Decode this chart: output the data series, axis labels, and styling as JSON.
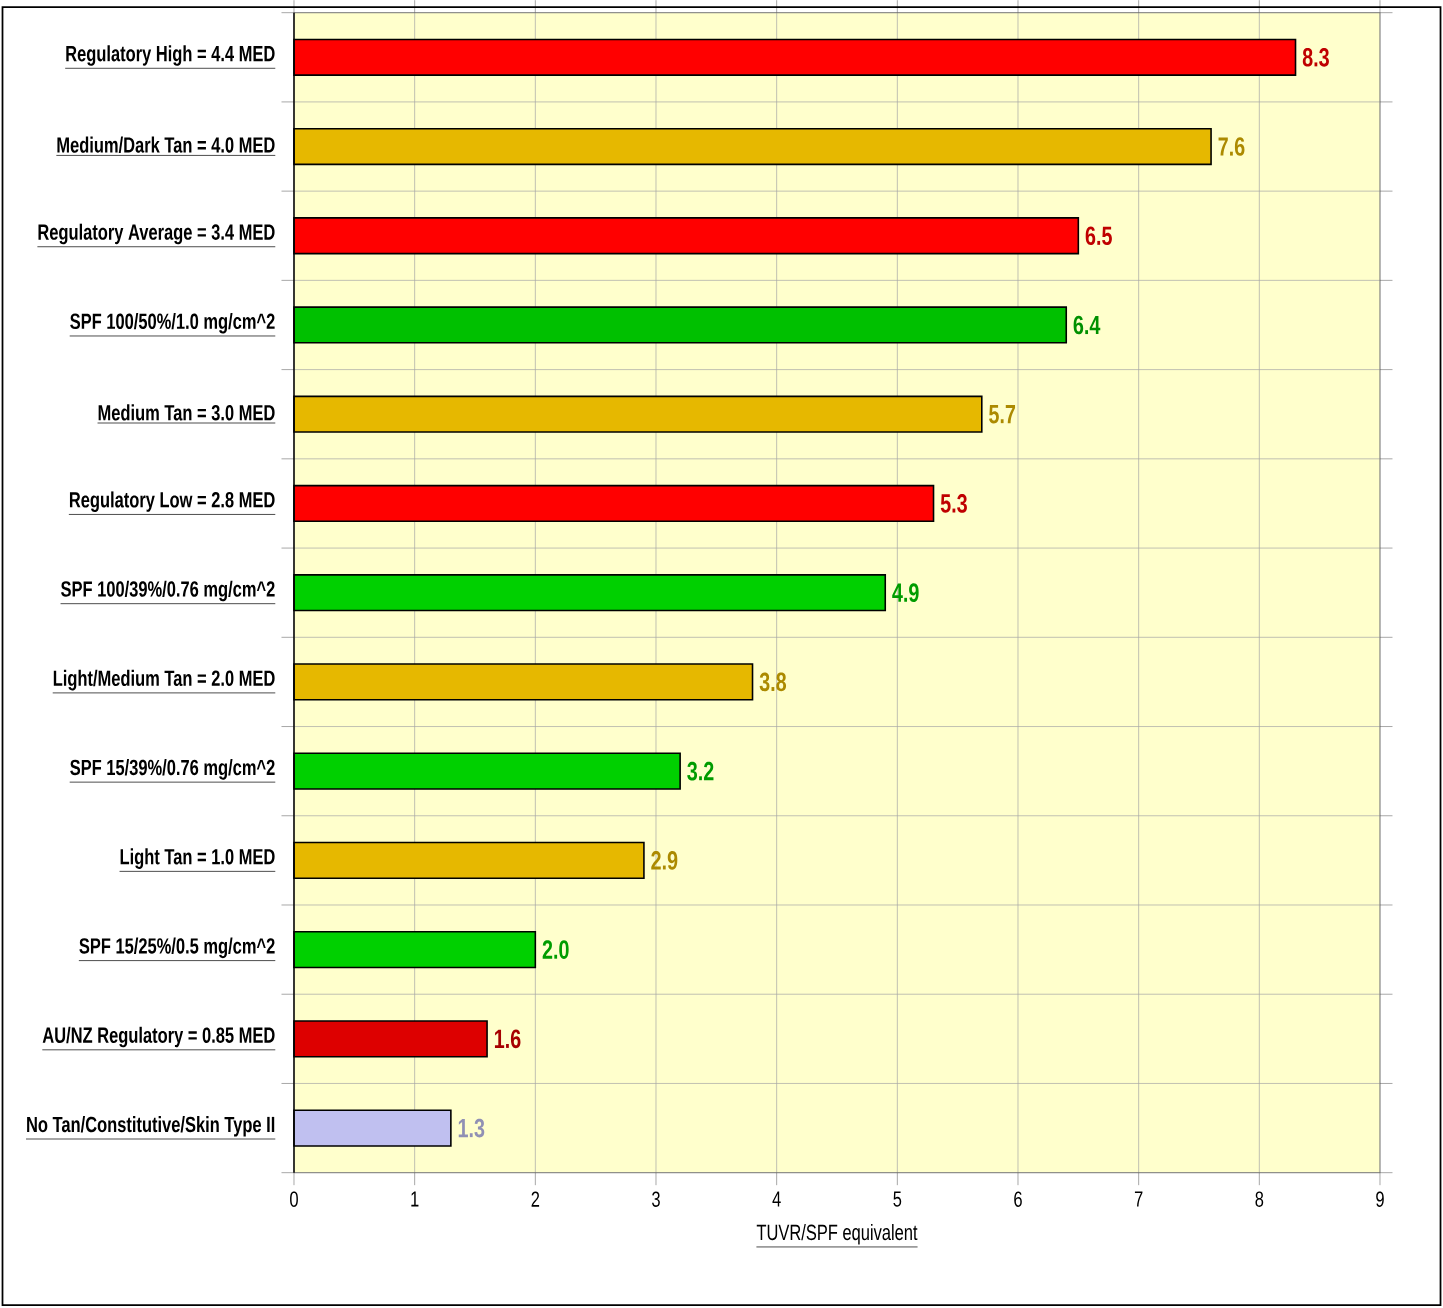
{
  "chart_data": {
    "type": "bar",
    "orientation": "horizontal",
    "categories": [
      "Regulatory High = 4.4 MED",
      "Medium/Dark Tan  = 4.0 MED",
      "Regulatory Average = 3.4 MED",
      "SPF 100/50%/1.0 mg/cm^2",
      "Medium Tan = 3.0 MED",
      "Regulatory Low  = 2.8 MED",
      "SPF 100/39%/0.76 mg/cm^2",
      "Light/Medium Tan = 2.0 MED",
      "SPF 15/39%/0.76 mg/cm^2",
      "Light Tan = 1.0 MED",
      "SPF 15/25%/0.5 mg/cm^2",
      "AU/NZ Regulatory = 0.85 MED",
      "No Tan/Constitutive/Skin Type II"
    ],
    "values": [
      8.3,
      7.6,
      6.5,
      6.4,
      5.7,
      5.3,
      4.9,
      3.8,
      3.2,
      2.9,
      2.0,
      1.6,
      1.3
    ],
    "value_labels": [
      "8.3",
      "7.6",
      "6.5",
      "6.4",
      "5.7",
      "5.3",
      "4.9",
      "3.8",
      "3.2",
      "2.9",
      "2.0",
      "1.6",
      "1.3"
    ],
    "colors": [
      "#ff0000",
      "#e6b800",
      "#ff0000",
      "#00c000",
      "#e6b800",
      "#ff0000",
      "#00d000",
      "#e6b800",
      "#00d000",
      "#e6b800",
      "#00d000",
      "#dd0000",
      "#c0c0f0"
    ],
    "xlabel": "TUVR/SPF equivalent",
    "xlim": [
      0,
      9
    ],
    "xticks": [
      0,
      1,
      2,
      3,
      4,
      5,
      6,
      7,
      8,
      9
    ],
    "grid": true
  }
}
